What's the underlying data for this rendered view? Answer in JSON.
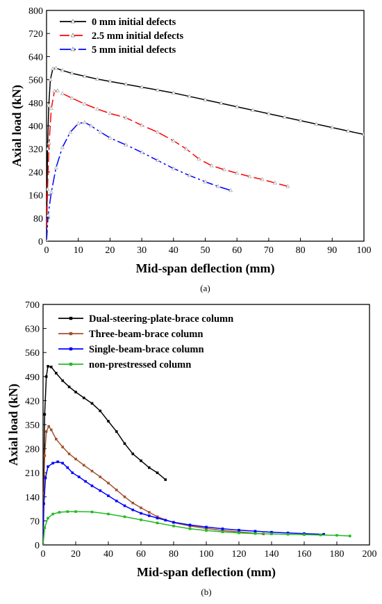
{
  "chart_data": [
    {
      "type": "line",
      "caption": "(a)",
      "xlabel": "Mid-span deflection (mm)",
      "ylabel": "Axial load (kN)",
      "xlim": [
        0,
        100
      ],
      "ylim": [
        0,
        800
      ],
      "xticks": [
        0,
        10,
        20,
        30,
        40,
        50,
        60,
        70,
        80,
        90,
        100
      ],
      "yticks": [
        0,
        80,
        160,
        240,
        320,
        400,
        480,
        560,
        640,
        720,
        800
      ],
      "legend_position": "top-left",
      "series": [
        {
          "name": "0 mm initial defects",
          "color": "#000000",
          "dash": "solid",
          "marker": "open-triangle",
          "points": [
            [
              0,
              0
            ],
            [
              0.3,
              320
            ],
            [
              0.7,
              470
            ],
            [
              1.2,
              560
            ],
            [
              2,
              598
            ],
            [
              3,
              600
            ],
            [
              5,
              592
            ],
            [
              8,
              582
            ],
            [
              12,
              572
            ],
            [
              16,
              562
            ],
            [
              20,
              554
            ],
            [
              25,
              544
            ],
            [
              30,
              534
            ],
            [
              35,
              524
            ],
            [
              40,
              514
            ],
            [
              45,
              502
            ],
            [
              50,
              490
            ],
            [
              55,
              478
            ],
            [
              60,
              466
            ],
            [
              65,
              454
            ],
            [
              70,
              442
            ],
            [
              75,
              430
            ],
            [
              80,
              418
            ],
            [
              85,
              406
            ],
            [
              90,
              394
            ],
            [
              95,
              382
            ],
            [
              100,
              370
            ]
          ]
        },
        {
          "name": "2.5 mm initial defects",
          "color": "#ff0000",
          "dash": "long-dash",
          "marker": "open-triangle",
          "points": [
            [
              0,
              0
            ],
            [
              0.3,
              180
            ],
            [
              0.8,
              340
            ],
            [
              1.5,
              460
            ],
            [
              2.5,
              520
            ],
            [
              3.5,
              522
            ],
            [
              5,
              512
            ],
            [
              8,
              496
            ],
            [
              12,
              476
            ],
            [
              16,
              458
            ],
            [
              20,
              443
            ],
            [
              25,
              428
            ],
            [
              30,
              402
            ],
            [
              35,
              378
            ],
            [
              40,
              348
            ],
            [
              44,
              320
            ],
            [
              48,
              285
            ],
            [
              52,
              262
            ],
            [
              56,
              248
            ],
            [
              60,
              236
            ],
            [
              64,
              224
            ],
            [
              68,
              214
            ],
            [
              72,
              202
            ],
            [
              76,
              190
            ]
          ]
        },
        {
          "name": "5 mm initial defects",
          "color": "#0000ff",
          "dash": "dash-dot",
          "marker": "open-triangle",
          "points": [
            [
              0,
              0
            ],
            [
              0.5,
              90
            ],
            [
              1.5,
              170
            ],
            [
              3,
              255
            ],
            [
              5,
              325
            ],
            [
              7.5,
              378
            ],
            [
              10,
              408
            ],
            [
              12,
              412
            ],
            [
              14,
              400
            ],
            [
              17,
              378
            ],
            [
              20,
              358
            ],
            [
              25,
              334
            ],
            [
              30,
              308
            ],
            [
              35,
              280
            ],
            [
              40,
              252
            ],
            [
              45,
              228
            ],
            [
              50,
              206
            ],
            [
              54,
              190
            ],
            [
              58,
              176
            ]
          ]
        }
      ]
    },
    {
      "type": "line",
      "caption": "(b)",
      "xlabel": "Mid-span deflection (mm)",
      "ylabel": "Axial load (kN)",
      "xlim": [
        0,
        200
      ],
      "ylim": [
        0,
        700
      ],
      "xticks": [
        0,
        20,
        40,
        60,
        80,
        100,
        120,
        140,
        160,
        180,
        200
      ],
      "yticks": [
        0,
        70,
        140,
        210,
        280,
        350,
        420,
        490,
        560,
        630,
        700
      ],
      "legend_position": "top-left",
      "series": [
        {
          "name": "Dual-steering-plate-brace column",
          "color": "#000000",
          "marker": "filled-square",
          "points": [
            [
              0,
              0
            ],
            [
              0.5,
              200
            ],
            [
              1,
              380
            ],
            [
              2,
              490
            ],
            [
              3,
              520
            ],
            [
              5,
              518
            ],
            [
              8,
              500
            ],
            [
              12,
              478
            ],
            [
              16,
              460
            ],
            [
              20,
              445
            ],
            [
              25,
              428
            ],
            [
              30,
              412
            ],
            [
              35,
              390
            ],
            [
              40,
              360
            ],
            [
              45,
              330
            ],
            [
              50,
              295
            ],
            [
              55,
              265
            ],
            [
              60,
              245
            ],
            [
              65,
              225
            ],
            [
              70,
              210
            ],
            [
              75,
              190
            ]
          ]
        },
        {
          "name": "Three-beam-brace column",
          "color": "#a0522d",
          "marker": "filled-square",
          "points": [
            [
              0,
              0
            ],
            [
              0.5,
              150
            ],
            [
              1,
              260
            ],
            [
              2,
              330
            ],
            [
              3.5,
              345
            ],
            [
              5,
              335
            ],
            [
              8,
              308
            ],
            [
              12,
              285
            ],
            [
              16,
              265
            ],
            [
              20,
              250
            ],
            [
              25,
              232
            ],
            [
              30,
              215
            ],
            [
              35,
              198
            ],
            [
              40,
              180
            ],
            [
              45,
              160
            ],
            [
              50,
              140
            ],
            [
              55,
              122
            ],
            [
              60,
              108
            ],
            [
              65,
              95
            ],
            [
              70,
              82
            ],
            [
              80,
              65
            ],
            [
              90,
              55
            ],
            [
              100,
              48
            ],
            [
              110,
              42
            ],
            [
              120,
              38
            ],
            [
              130,
              34
            ],
            [
              135,
              32
            ]
          ]
        },
        {
          "name": "Single-beam-brace column",
          "color": "#0000ff",
          "marker": "filled-square",
          "points": [
            [
              0,
              0
            ],
            [
              0.5,
              120
            ],
            [
              1.5,
              195
            ],
            [
              3,
              228
            ],
            [
              6,
              238
            ],
            [
              9,
              242
            ],
            [
              12,
              238
            ],
            [
              15,
              225
            ],
            [
              18,
              210
            ],
            [
              22,
              198
            ],
            [
              26,
              185
            ],
            [
              30,
              172
            ],
            [
              35,
              158
            ],
            [
              40,
              143
            ],
            [
              45,
              128
            ],
            [
              50,
              114
            ],
            [
              55,
              102
            ],
            [
              60,
              92
            ],
            [
              65,
              85
            ],
            [
              70,
              78
            ],
            [
              75,
              72
            ],
            [
              80,
              66
            ],
            [
              90,
              58
            ],
            [
              100,
              52
            ],
            [
              110,
              47
            ],
            [
              120,
              43
            ],
            [
              130,
              40
            ],
            [
              140,
              37
            ],
            [
              150,
              35
            ],
            [
              160,
              33
            ],
            [
              172,
              31
            ]
          ]
        },
        {
          "name": "non-prestressed column",
          "color": "#22bb22",
          "marker": "filled-square",
          "points": [
            [
              0,
              0
            ],
            [
              1,
              50
            ],
            [
              3,
              78
            ],
            [
              6,
              90
            ],
            [
              10,
              95
            ],
            [
              15,
              97
            ],
            [
              20,
              97
            ],
            [
              30,
              96
            ],
            [
              40,
              90
            ],
            [
              50,
              82
            ],
            [
              60,
              73
            ],
            [
              70,
              64
            ],
            [
              80,
              55
            ],
            [
              90,
              47
            ],
            [
              100,
              42
            ],
            [
              110,
              38
            ],
            [
              120,
              35
            ],
            [
              130,
              33
            ],
            [
              140,
              32
            ],
            [
              150,
              31
            ],
            [
              160,
              30
            ],
            [
              170,
              29
            ],
            [
              180,
              28
            ],
            [
              188,
              26
            ]
          ]
        }
      ]
    }
  ]
}
